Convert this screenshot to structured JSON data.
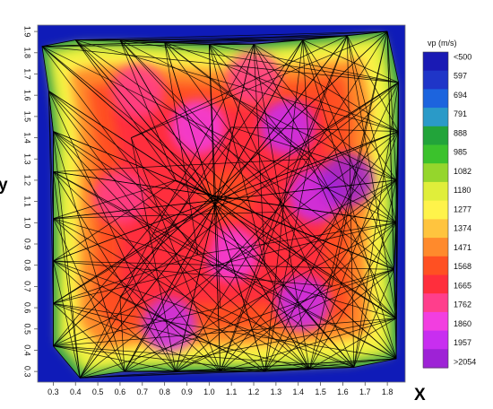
{
  "chart_data": {
    "type": "heatmap",
    "title": "",
    "xlabel": "X",
    "ylabel": "y",
    "x_ticks": [
      "0.3",
      "0.4",
      "0.5",
      "0.6",
      "0.7",
      "0.8",
      "0.9",
      "1.0",
      "1.1",
      "1.2",
      "1.3",
      "1.4",
      "1.5",
      "1.6",
      "1.7",
      "1.8"
    ],
    "y_ticks": [
      "0.3",
      "0.4",
      "0.5",
      "0.6",
      "0.7",
      "0.8",
      "0.9",
      "1.0",
      "1.1",
      "1.2",
      "1.3",
      "1.4",
      "1.5",
      "1.6",
      "1.7",
      "1.8",
      "1.9"
    ],
    "xlim": [
      0.23,
      1.88
    ],
    "ylim": [
      0.25,
      1.93
    ],
    "colorbar": {
      "title": "vp (m/s)",
      "labels": [
        "<500",
        "597",
        "694",
        "791",
        "888",
        "985",
        "1082",
        "1180",
        "1277",
        "1374",
        "1471",
        "1568",
        "1665",
        "1762",
        "1860",
        "1957",
        ">2054"
      ],
      "colors": [
        "#1a1ab4",
        "#1f35c8",
        "#1c64de",
        "#2a9ac8",
        "#22a43a",
        "#3bc22c",
        "#95d62c",
        "#e0ee3a",
        "#fff34a",
        "#ffc43e",
        "#ff8a2c",
        "#ff5022",
        "#ff2e3c",
        "#ff3e8c",
        "#f23ee0",
        "#c82ef0",
        "#9e22d6"
      ]
    },
    "border_colors": {
      "outer": "#0f1bb8",
      "edge": "#2e9a4a"
    },
    "stations": [
      [
        0.25,
        1.83
      ],
      [
        0.4,
        1.86
      ],
      [
        0.6,
        1.86
      ],
      [
        0.8,
        1.85
      ],
      [
        1.0,
        1.84
      ],
      [
        1.2,
        1.84
      ],
      [
        1.42,
        1.86
      ],
      [
        1.62,
        1.88
      ],
      [
        1.8,
        1.9
      ],
      [
        1.85,
        1.66
      ],
      [
        1.85,
        1.43
      ],
      [
        1.84,
        1.2
      ],
      [
        1.84,
        1.0
      ],
      [
        1.83,
        0.78
      ],
      [
        1.84,
        0.55
      ],
      [
        1.84,
        0.36
      ],
      [
        1.65,
        0.32
      ],
      [
        1.45,
        0.31
      ],
      [
        1.25,
        0.3
      ],
      [
        1.05,
        0.3
      ],
      [
        0.85,
        0.3
      ],
      [
        0.62,
        0.3
      ],
      [
        0.42,
        0.27
      ],
      [
        0.3,
        0.42
      ],
      [
        0.3,
        0.62
      ],
      [
        0.3,
        0.82
      ],
      [
        0.3,
        1.02
      ],
      [
        0.3,
        1.24
      ],
      [
        0.3,
        1.43
      ],
      [
        0.28,
        1.62
      ]
    ],
    "inner_points": [
      [
        1.08,
        1.12
      ],
      [
        0.85,
        1.2
      ],
      [
        1.3,
        1.05
      ],
      [
        0.95,
        0.85
      ],
      [
        1.25,
        0.8
      ],
      [
        0.75,
        0.95
      ],
      [
        1.45,
        1.3
      ],
      [
        0.65,
        1.4
      ],
      [
        1.55,
        0.7
      ],
      [
        0.6,
        0.65
      ],
      [
        1.1,
        1.45
      ],
      [
        1.05,
        0.6
      ]
    ],
    "anomalies": [
      {
        "x": 1.08,
        "y": 1.13,
        "v": 1590
      },
      {
        "x": 1.35,
        "y": 1.45,
        "v": 1950
      },
      {
        "x": 1.48,
        "y": 1.13,
        "v": 2000
      },
      {
        "x": 1.42,
        "y": 0.62,
        "v": 1960
      },
      {
        "x": 0.82,
        "y": 0.52,
        "v": 1910
      },
      {
        "x": 0.95,
        "y": 1.45,
        "v": 1860
      },
      {
        "x": 1.62,
        "y": 1.2,
        "v": 2020
      },
      {
        "x": 0.6,
        "y": 1.12,
        "v": 1730
      },
      {
        "x": 1.1,
        "y": 0.85,
        "v": 1820
      },
      {
        "x": 0.68,
        "y": 1.62,
        "v": 1720
      },
      {
        "x": 1.2,
        "y": 1.68,
        "v": 1760
      },
      {
        "x": 0.9,
        "y": 0.92,
        "v": 1700
      }
    ]
  }
}
